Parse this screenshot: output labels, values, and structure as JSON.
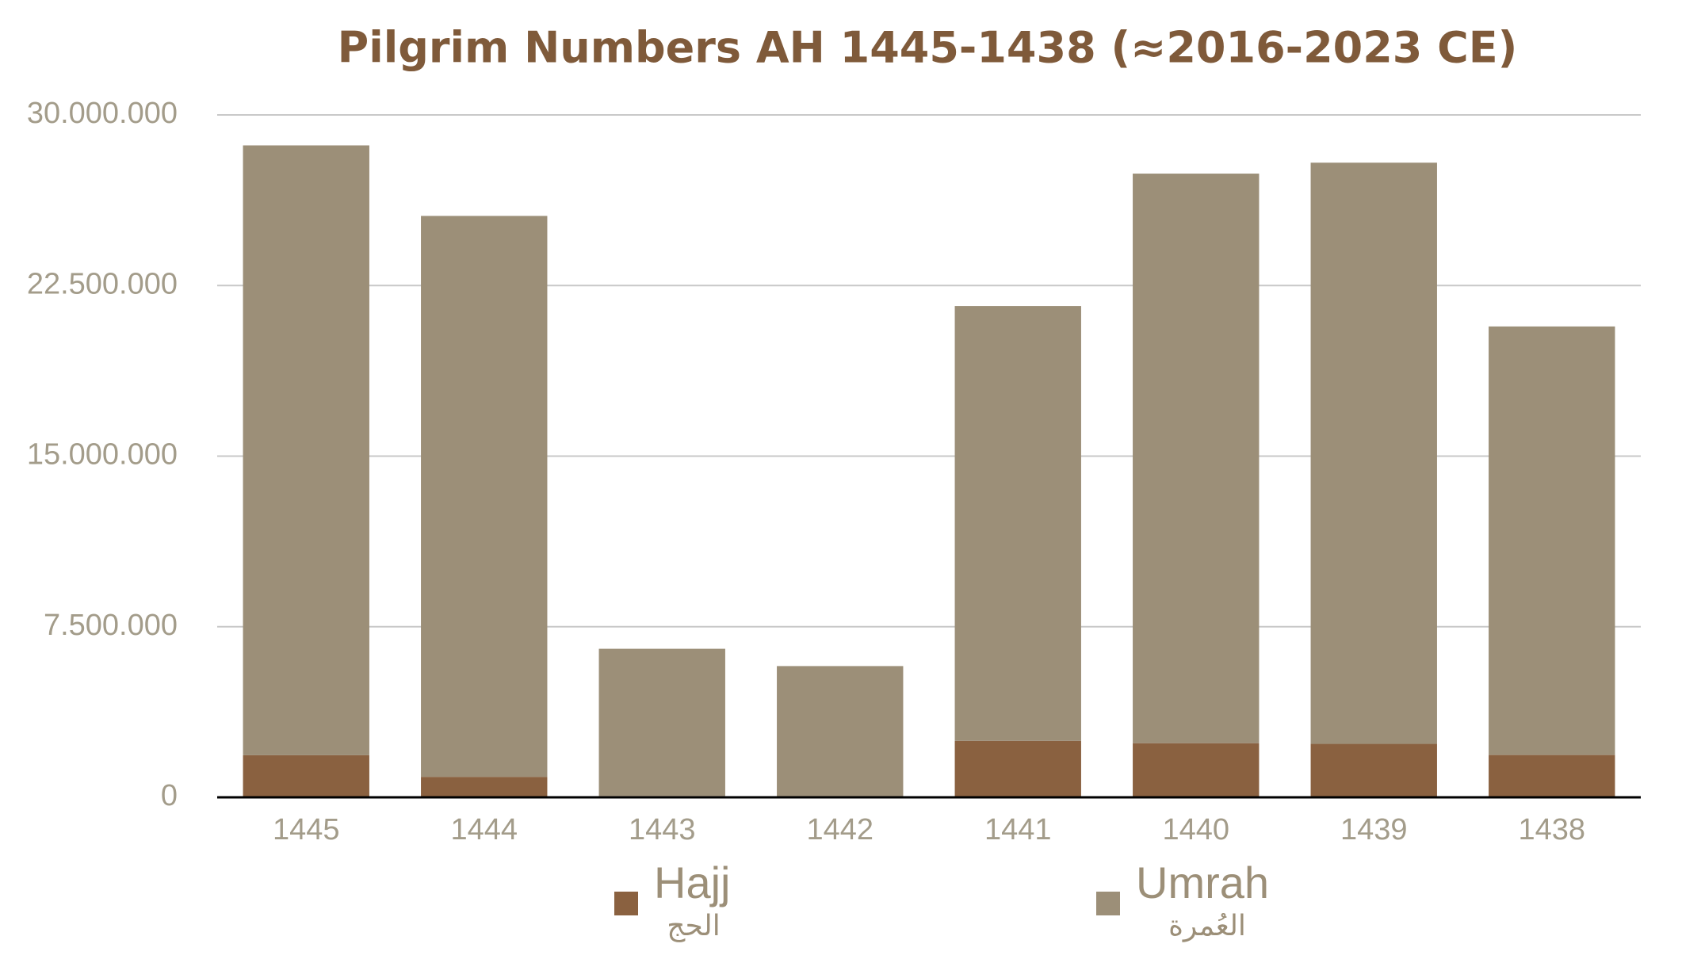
{
  "chart_data": {
    "type": "stacked_bar",
    "title": "Pilgrim Numbers AH 1445-1438 (≈2016-2023 CE)",
    "categories": [
      "1445",
      "1444",
      "1443",
      "1442",
      "1441",
      "1440",
      "1439",
      "1438"
    ],
    "series": [
      {
        "name": "Hajj",
        "name_ar": "الحج",
        "color": "#8a6140",
        "values": [
          1850000,
          900000,
          60000,
          10000,
          2480000,
          2380000,
          2350000,
          1860000
        ]
      },
      {
        "name": "Umrah",
        "name_ar": "العُمرة",
        "color": "#9c8f78",
        "values": [
          26810000,
          24660000,
          6470000,
          5760000,
          19120000,
          25040000,
          25550000,
          18840000
        ]
      }
    ],
    "ylim": [
      0,
      30000000
    ],
    "yticks": [
      0,
      {
        "value": 7500000,
        "label": "7.500.000"
      },
      {
        "value": 15000000,
        "label": "15.000.000"
      },
      {
        "value": 22500000,
        "label": "22.500.000"
      },
      {
        "value": 30000000,
        "label": "30.000.000"
      }
    ],
    "grid": true,
    "legend": "bottom"
  }
}
